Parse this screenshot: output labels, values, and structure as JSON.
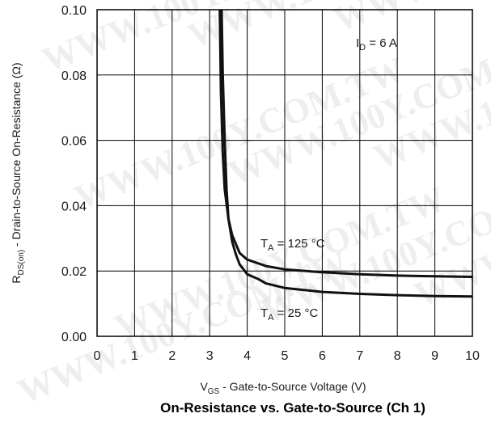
{
  "chart_data": {
    "type": "line",
    "title": "On-Resistance vs. Gate-to-Source (Ch 1)",
    "xlabel": {
      "main": "V",
      "sub": "GS",
      "rest": " - Gate-to-Source Voltage (V)"
    },
    "ylabel": {
      "main": "R",
      "sub": "DS(on)",
      "rest": " - Drain-to-Source On-Resistance (Ω)"
    },
    "xlim": [
      0,
      10
    ],
    "ylim": [
      0,
      0.1
    ],
    "xticks": [
      "0",
      "1",
      "2",
      "3",
      "4",
      "5",
      "6",
      "7",
      "8",
      "9",
      "10"
    ],
    "yticks": [
      "0.00",
      "0.02",
      "0.04",
      "0.06",
      "0.08",
      "0.10"
    ],
    "grid": true,
    "annotations": [
      {
        "main": "I",
        "sub": "D",
        "rest": " = 6 A"
      },
      {
        "main": "T",
        "sub": "A",
        "rest": " = 125 °C"
      },
      {
        "main": "T",
        "sub": "A",
        "rest": " = 25 °C"
      }
    ],
    "series": [
      {
        "x": [
          3.27,
          3.3,
          3.35,
          3.4,
          3.5,
          3.6,
          3.8,
          4.0,
          4.5,
          5.0,
          6.0,
          7.0,
          8.0,
          9.0,
          10.0
        ],
        "y": [
          0.1,
          0.075,
          0.056,
          0.045,
          0.036,
          0.031,
          0.0255,
          0.0235,
          0.0215,
          0.0205,
          0.0196,
          0.019,
          0.0186,
          0.0184,
          0.0182
        ]
      },
      {
        "x": [
          3.32,
          3.35,
          3.4,
          3.45,
          3.5,
          3.6,
          3.7,
          3.8,
          4.0,
          4.3,
          4.5,
          5.0,
          6.0,
          7.0,
          8.0,
          9.0,
          10.0
        ],
        "y": [
          0.1,
          0.08,
          0.06,
          0.045,
          0.036,
          0.029,
          0.025,
          0.022,
          0.019,
          0.0175,
          0.0162,
          0.0148,
          0.0136,
          0.013,
          0.0126,
          0.0123,
          0.0122
        ]
      }
    ],
    "watermark": "WWW.100Y.COM.TW"
  }
}
